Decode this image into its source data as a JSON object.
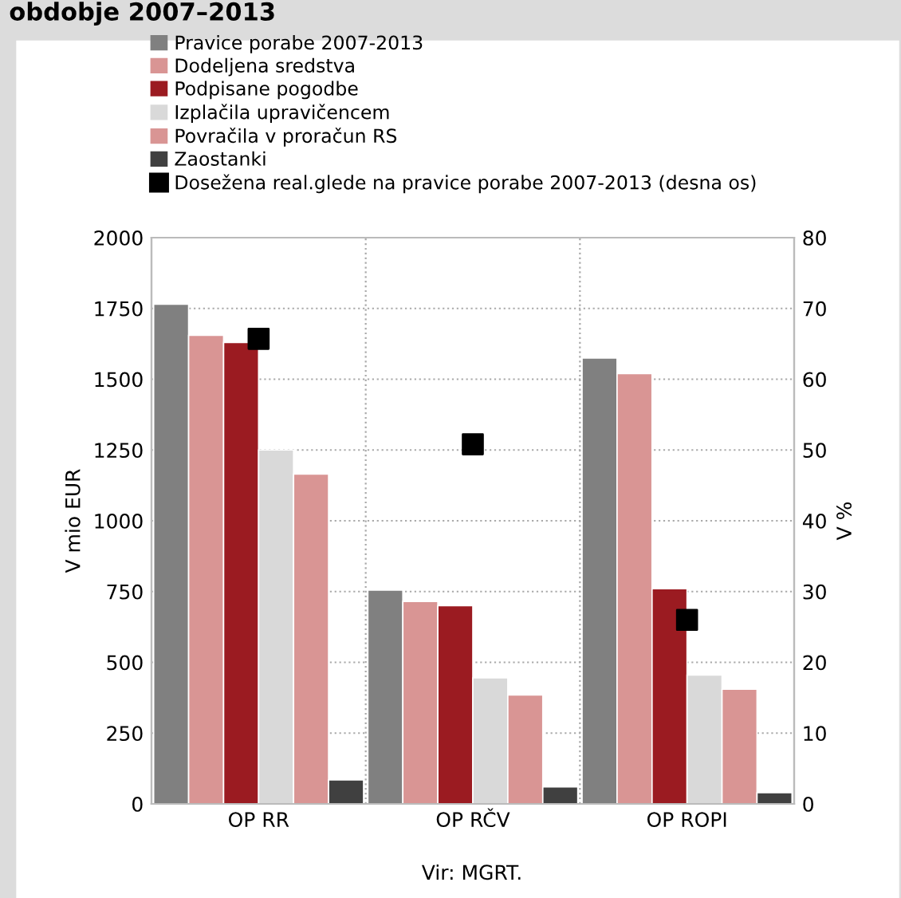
{
  "chart_data": {
    "type": "bar",
    "title": "obdobje 2007–2013",
    "ylabel": "V mio EUR",
    "y2label": "V %",
    "categories": [
      "OP RR",
      "OP RČV",
      "OP ROPI"
    ],
    "series": [
      {
        "name": "Pravice porabe 2007-2013",
        "color": "#808080",
        "values": [
          1765,
          755,
          1575
        ]
      },
      {
        "name": "Dodeljena sredstva",
        "color": "#d99594",
        "values": [
          1655,
          715,
          1520
        ]
      },
      {
        "name": "Podpisane pogodbe",
        "color": "#9b1b21",
        "values": [
          1630,
          700,
          760
        ]
      },
      {
        "name": "Izplačila upravičencem",
        "color": "#d9d9d9",
        "values": [
          1250,
          445,
          455
        ]
      },
      {
        "name": "Povračila v proračun RS",
        "color": "#d99594",
        "values": [
          1165,
          385,
          405
        ]
      },
      {
        "name": "Zaostanki",
        "color": "#404040",
        "values": [
          85,
          60,
          40
        ]
      },
      {
        "name": "Dosežena real.glede na pravice porabe 2007-2013 (desna os)",
        "type": "scatter",
        "axis": "y2",
        "marker": "square",
        "color": "#000000",
        "values": [
          65.7,
          50.8,
          26
        ]
      }
    ],
    "ylim": [
      0,
      2000
    ],
    "yticks": [
      0,
      250,
      500,
      750,
      1000,
      1250,
      1500,
      1750,
      2000
    ],
    "y2lim": [
      0,
      80
    ],
    "y2ticks": [
      0,
      10,
      20,
      30,
      40,
      50,
      60,
      70,
      80
    ],
    "grid": true,
    "legend": "top",
    "annotations": [
      "Vir: MGRT."
    ]
  }
}
